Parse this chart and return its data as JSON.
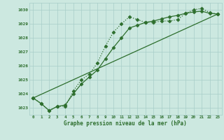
{
  "title": "Graphe pression niveau de la mer (hPa)",
  "bg_color": "#cce8e0",
  "grid_color": "#a8cec8",
  "line_color": "#2d6e2d",
  "xlim": [
    -0.5,
    23.5
  ],
  "ylim": [
    1022.5,
    1030.5
  ],
  "yticks": [
    1023,
    1024,
    1025,
    1026,
    1027,
    1028,
    1029,
    1030
  ],
  "xticks": [
    0,
    1,
    2,
    3,
    4,
    5,
    6,
    7,
    8,
    9,
    10,
    11,
    12,
    13,
    14,
    15,
    16,
    17,
    18,
    19,
    20,
    21,
    22,
    23
  ],
  "series": [
    {
      "x": [
        0,
        1,
        2,
        3,
        4,
        5,
        6,
        7,
        8,
        9,
        10,
        11,
        12,
        13,
        14,
        15,
        16,
        17,
        18,
        19,
        20,
        21,
        22,
        23
      ],
      "y": [
        1023.7,
        1023.3,
        1022.8,
        1023.1,
        1023.1,
        1024.2,
        1025.0,
        1025.4,
        1026.2,
        1027.4,
        1028.4,
        1029.0,
        1029.5,
        1029.3,
        1029.1,
        1029.1,
        1029.2,
        1029.2,
        1029.3,
        1029.75,
        1030.0,
        1030.1,
        1029.8,
        1029.7
      ],
      "linestyle": ":",
      "marker": "D",
      "markersize": 2.5,
      "linewidth": 0.9
    },
    {
      "x": [
        0,
        1,
        2,
        3,
        4,
        5,
        6,
        7,
        8,
        9,
        10,
        11,
        12,
        13,
        14,
        15,
        16,
        17,
        18,
        19,
        20,
        21,
        22,
        23
      ],
      "y": [
        1023.7,
        1023.3,
        1022.8,
        1023.1,
        1023.2,
        1024.0,
        1024.7,
        1025.2,
        1025.7,
        1026.5,
        1027.3,
        1028.0,
        1028.7,
        1028.9,
        1029.1,
        1029.2,
        1029.35,
        1029.5,
        1029.6,
        1029.75,
        1029.85,
        1029.9,
        1029.75,
        1029.7
      ],
      "linestyle": "-",
      "marker": "D",
      "markersize": 2.5,
      "linewidth": 0.9
    },
    {
      "x": [
        0,
        23
      ],
      "y": [
        1023.7,
        1029.7
      ],
      "linestyle": "-",
      "marker": null,
      "markersize": 0,
      "linewidth": 0.9
    }
  ]
}
